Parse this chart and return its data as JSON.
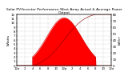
{
  "title": "Solar PV/Inverter Performance West Array Actual & Average Power Output",
  "ylabel": "kWatts",
  "y2label": "kWh+",
  "xlim": [
    0,
    288
  ],
  "ylim": [
    0,
    12
  ],
  "y2lim": [
    0,
    80
  ],
  "background_color": "#ffffff",
  "plot_bg_color": "#ffffff",
  "fill_color": "#ff0000",
  "line_color": "#cc0000",
  "grid_color": "#bbbbbb",
  "title_fontsize": 3.2,
  "axis_fontsize": 3.0,
  "tick_fontsize": 2.8,
  "num_points": 289,
  "peak_index": 144,
  "peak_value": 11.2,
  "sigma": 52,
  "start_index": 48,
  "end_index": 240,
  "x_ticks": [
    0,
    24,
    48,
    72,
    96,
    120,
    144,
    168,
    192,
    216,
    240,
    264,
    288
  ],
  "x_tick_labels": [
    "12a",
    "2",
    "4",
    "6",
    "8",
    "10",
    "12p",
    "2",
    "4",
    "6",
    "8",
    "10",
    "12a"
  ],
  "y_ticks": [
    0,
    1,
    2,
    3,
    4,
    5,
    6,
    7,
    8,
    9,
    10,
    11,
    12
  ],
  "y2_ticks": [
    0,
    10,
    20,
    30,
    40,
    50,
    60,
    70,
    80
  ]
}
